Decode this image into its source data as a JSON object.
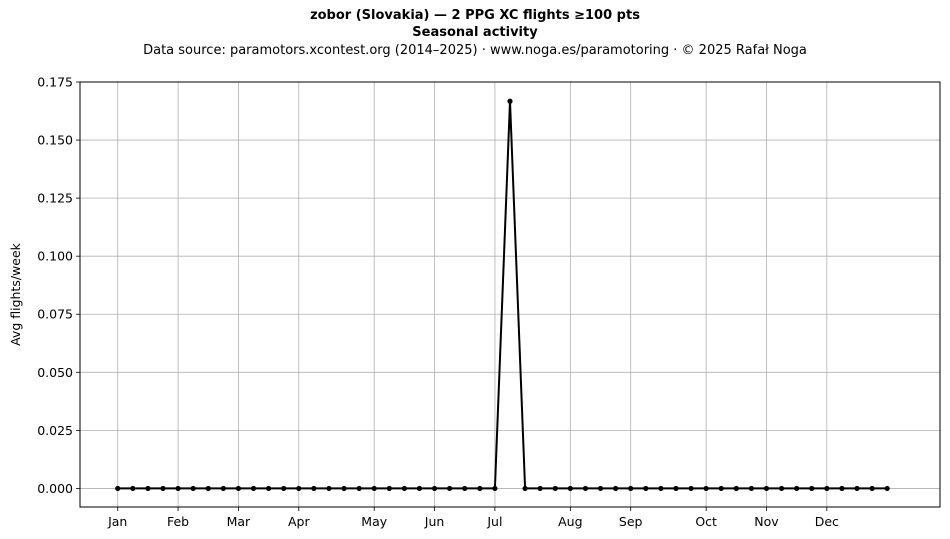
{
  "chart_data": {
    "type": "line",
    "title": "zobor (Slovakia)  —  2 PPG XC flights ≥100 pts",
    "subtitle": "Seasonal activity",
    "source": "Data source: paramotors.xcontest.org (2014–2025)  ·  www.noga.es/paramotoring  ·  © 2025 Rafał Noga",
    "xlabel": "",
    "ylabel": "Avg flights/week",
    "ylim": [
      -0.008,
      0.175
    ],
    "xlim": [
      -2.5,
      54.5
    ],
    "yticks": [
      0.0,
      0.025,
      0.05,
      0.075,
      0.1,
      0.125,
      0.15,
      0.175
    ],
    "ytick_labels": [
      "0.000",
      "0.025",
      "0.050",
      "0.075",
      "0.100",
      "0.125",
      "0.150",
      "0.175"
    ],
    "xticks": [
      0,
      4,
      8,
      12,
      17,
      21,
      25,
      30,
      34,
      39,
      43,
      47
    ],
    "xtick_labels": [
      "Jan",
      "Feb",
      "Mar",
      "Apr",
      "May",
      "Jun",
      "Jul",
      "Aug",
      "Sep",
      "Oct",
      "Nov",
      "Dec"
    ],
    "grid": true,
    "series": [
      {
        "color": "#000000",
        "x": [
          0,
          1,
          2,
          3,
          4,
          5,
          6,
          7,
          8,
          9,
          10,
          11,
          12,
          13,
          14,
          15,
          16,
          17,
          18,
          19,
          20,
          21,
          22,
          23,
          24,
          25,
          26,
          27,
          28,
          29,
          30,
          31,
          32,
          33,
          34,
          35,
          36,
          37,
          38,
          39,
          40,
          41,
          42,
          43,
          44,
          45,
          46,
          47,
          48,
          49,
          50,
          51
        ],
        "values": [
          0,
          0,
          0,
          0,
          0,
          0,
          0,
          0,
          0,
          0,
          0,
          0,
          0,
          0,
          0,
          0,
          0,
          0,
          0,
          0,
          0,
          0,
          0,
          0,
          0,
          0,
          0.1667,
          0,
          0,
          0,
          0,
          0,
          0,
          0,
          0,
          0,
          0,
          0,
          0,
          0,
          0,
          0,
          0,
          0,
          0,
          0,
          0,
          0,
          0,
          0,
          0,
          0
        ]
      }
    ]
  }
}
